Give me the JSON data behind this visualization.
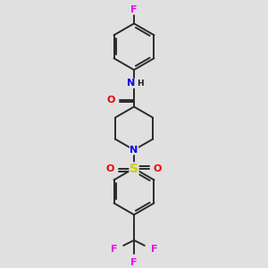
{
  "bg": "#e0e0e0",
  "bond_color": "#2a2a2a",
  "bond_lw": 1.4,
  "dbl_sep": 0.01,
  "colors": {
    "N": "#0000ee",
    "O": "#ee0000",
    "F": "#ee00ee",
    "S": "#cccc00",
    "C": "#1a1a1a"
  },
  "fs": 8.0,
  "figsize": [
    3.0,
    3.0
  ],
  "dpi": 100
}
